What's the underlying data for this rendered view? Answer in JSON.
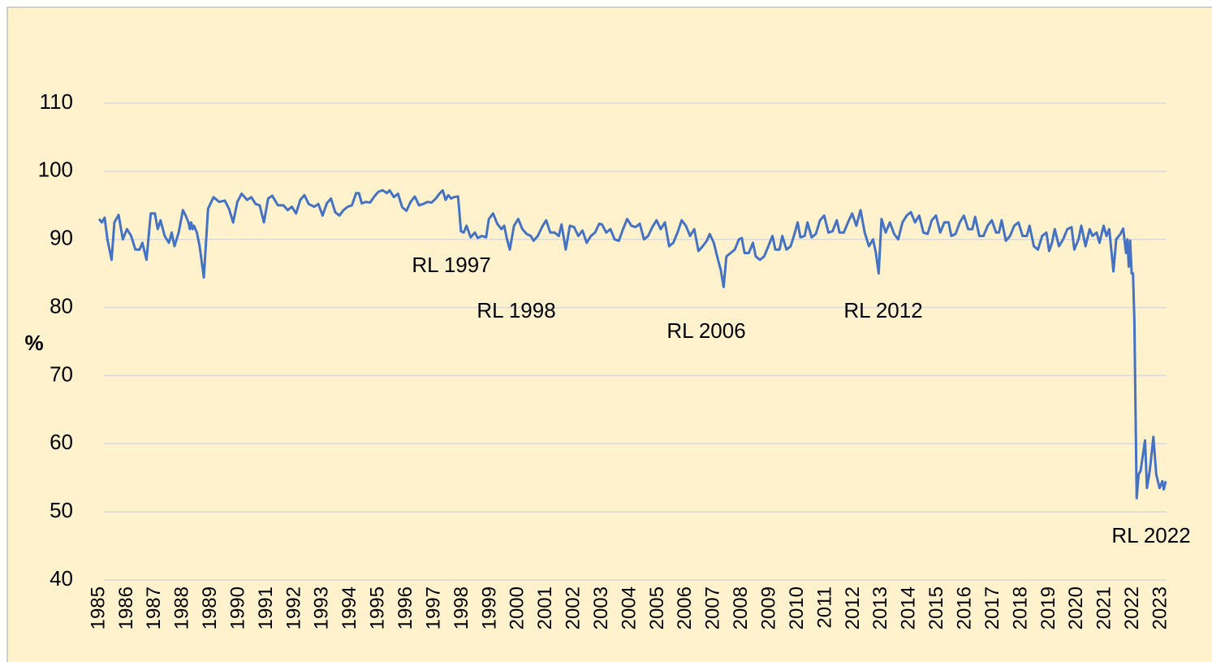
{
  "chart_data": {
    "type": "line",
    "y_label": "%",
    "annotations": [
      "RL 1997",
      "RL 1998",
      "RL 2006",
      "RL 2012",
      "RL 2022"
    ],
    "color": "#4472c4",
    "grid": true,
    "xlim": [
      1985,
      2023.2
    ],
    "xticks": [
      1985,
      1986,
      1987,
      1988,
      1989,
      1990,
      1991,
      1992,
      1993,
      1994,
      1995,
      1996,
      1997,
      1998,
      1999,
      2000,
      2001,
      2002,
      2003,
      2004,
      2005,
      2006,
      2007,
      2008,
      2009,
      2010,
      2011,
      2012,
      2013,
      2014,
      2015,
      2016,
      2017,
      2018,
      2019,
      2020,
      2021,
      2022,
      2023
    ],
    "ylim": [
      40,
      110
    ],
    "yticks": [
      40,
      50,
      60,
      70,
      80,
      90,
      100,
      110
    ],
    "x": [
      1985.0,
      1985.1,
      1985.2,
      1985.3,
      1985.45,
      1985.55,
      1985.7,
      1985.85,
      1986.0,
      1986.15,
      1986.3,
      1986.45,
      1986.55,
      1986.7,
      1986.85,
      1987.0,
      1987.1,
      1987.2,
      1987.35,
      1987.5,
      1987.6,
      1987.7,
      1987.85,
      1988.0,
      1988.1,
      1988.2,
      1988.25,
      1988.3,
      1988.35,
      1988.4,
      1988.5,
      1988.6,
      1988.75,
      1988.9,
      1989.1,
      1989.3,
      1989.5,
      1989.65,
      1989.8,
      1989.95,
      1990.1,
      1990.3,
      1990.45,
      1990.6,
      1990.75,
      1990.9,
      1991.05,
      1991.2,
      1991.4,
      1991.6,
      1991.75,
      1991.9,
      1992.05,
      1992.2,
      1992.35,
      1992.5,
      1992.7,
      1992.85,
      1993.0,
      1993.15,
      1993.3,
      1993.45,
      1993.6,
      1993.75,
      1993.9,
      1994.05,
      1994.2,
      1994.3,
      1994.4,
      1994.55,
      1994.7,
      1994.85,
      1995.0,
      1995.15,
      1995.3,
      1995.4,
      1995.55,
      1995.7,
      1995.85,
      1996.0,
      1996.15,
      1996.3,
      1996.45,
      1996.6,
      1996.75,
      1996.9,
      1997.05,
      1997.2,
      1997.3,
      1997.4,
      1997.5,
      1997.6,
      1997.7,
      1997.85,
      1997.95,
      1998.05,
      1998.15,
      1998.3,
      1998.45,
      1998.55,
      1998.7,
      1998.85,
      1998.95,
      1999.1,
      1999.25,
      1999.4,
      1999.5,
      1999.6,
      1999.7,
      1999.85,
      2000.0,
      2000.15,
      2000.3,
      2000.45,
      2000.55,
      2000.7,
      2000.85,
      2001.0,
      2001.15,
      2001.3,
      2001.45,
      2001.55,
      2001.7,
      2001.85,
      2002.0,
      2002.15,
      2002.3,
      2002.45,
      2002.6,
      2002.75,
      2002.9,
      2003.0,
      2003.15,
      2003.3,
      2003.45,
      2003.6,
      2003.75,
      2003.9,
      2004.05,
      2004.2,
      2004.35,
      2004.5,
      2004.65,
      2004.8,
      2004.95,
      2005.1,
      2005.25,
      2005.4,
      2005.55,
      2005.7,
      2005.85,
      2006.0,
      2006.15,
      2006.3,
      2006.45,
      2006.6,
      2006.75,
      2006.85,
      2007.0,
      2007.15,
      2007.25,
      2007.35,
      2007.45,
      2007.6,
      2007.75,
      2007.9,
      2008.0,
      2008.1,
      2008.25,
      2008.4,
      2008.5,
      2008.65,
      2008.8,
      2008.95,
      2009.1,
      2009.2,
      2009.35,
      2009.45,
      2009.6,
      2009.75,
      2009.9,
      2010.0,
      2010.1,
      2010.25,
      2010.35,
      2010.5,
      2010.65,
      2010.8,
      2010.95,
      2011.1,
      2011.25,
      2011.4,
      2011.5,
      2011.65,
      2011.8,
      2011.95,
      2012.1,
      2012.25,
      2012.4,
      2012.55,
      2012.7,
      2012.8,
      2012.9,
      2013.0,
      2013.15,
      2013.3,
      2013.45,
      2013.6,
      2013.75,
      2013.9,
      2014.05,
      2014.2,
      2014.35,
      2014.5,
      2014.65,
      2014.8,
      2014.95,
      2015.1,
      2015.25,
      2015.4,
      2015.5,
      2015.65,
      2015.8,
      2015.95,
      2016.1,
      2016.25,
      2016.35,
      2016.5,
      2016.65,
      2016.8,
      2016.95,
      2017.1,
      2017.2,
      2017.3,
      2017.45,
      2017.6,
      2017.75,
      2017.9,
      2018.05,
      2018.2,
      2018.3,
      2018.45,
      2018.6,
      2018.75,
      2018.9,
      2019.0,
      2019.1,
      2019.2,
      2019.35,
      2019.5,
      2019.65,
      2019.8,
      2019.9,
      2020.05,
      2020.15,
      2020.3,
      2020.45,
      2020.55,
      2020.7,
      2020.8,
      2020.95,
      2021.05,
      2021.15,
      2021.3,
      2021.4,
      2021.55,
      2021.65,
      2021.75,
      2021.8,
      2021.85,
      2021.9,
      2021.95,
      2022.0,
      2022.05,
      2022.09,
      2022.13,
      2022.2,
      2022.27,
      2022.43,
      2022.5,
      2022.6,
      2022.73,
      2022.83,
      2022.95,
      2023.05,
      2023.1,
      2023.17
    ],
    "values": [
      93,
      92.5,
      93.2,
      90,
      87,
      92.5,
      93.6,
      90,
      91.5,
      90.5,
      88.5,
      88.5,
      89.5,
      87,
      93.8,
      93.8,
      91.5,
      92.8,
      90.5,
      89.5,
      91,
      89,
      91,
      94.3,
      93.5,
      92.5,
      91.5,
      92.5,
      91.5,
      92,
      91,
      89,
      84.4,
      94.5,
      96.2,
      95.5,
      95.7,
      94.5,
      92.5,
      95.5,
      96.7,
      95.8,
      96.2,
      95.2,
      95,
      92.5,
      96,
      96.4,
      95,
      95,
      94.3,
      94.8,
      93.8,
      95.8,
      96.5,
      95.2,
      94.8,
      95.2,
      93.5,
      95.3,
      96,
      94,
      93.5,
      94.3,
      94.8,
      95,
      96.8,
      96.8,
      95.3,
      95.5,
      95.4,
      96.3,
      97,
      97.2,
      96.8,
      97.2,
      96.2,
      96.7,
      94.7,
      94.2,
      95.5,
      96.3,
      95,
      95.2,
      95.5,
      95.4,
      96,
      96.8,
      97.2,
      95.8,
      96.5,
      96,
      96.2,
      96.3,
      91.2,
      91,
      92,
      90.3,
      91,
      90.2,
      90.5,
      90.3,
      93,
      93.8,
      92.3,
      91.5,
      92,
      90,
      88.5,
      92,
      93,
      91.5,
      90.8,
      90.5,
      89.8,
      90.5,
      91.8,
      92.8,
      91,
      91,
      90.5,
      92.2,
      88.5,
      92,
      91.8,
      90.5,
      91.3,
      89.5,
      90.5,
      91,
      92.3,
      92.2,
      91,
      91.5,
      90,
      89.8,
      91.5,
      93,
      92,
      91.8,
      92.3,
      90,
      90.5,
      91.8,
      92.8,
      91.5,
      92.5,
      89,
      89.5,
      91,
      92.8,
      92,
      90.5,
      91.5,
      88.3,
      89,
      89.8,
      90.8,
      89.5,
      87,
      85.5,
      83,
      87.5,
      88,
      88.5,
      90,
      90.2,
      88,
      88,
      89.5,
      87.5,
      87,
      87.5,
      89,
      90.5,
      88.5,
      88.5,
      90.5,
      88.5,
      89,
      91,
      92.5,
      90.3,
      90.5,
      92.5,
      90.3,
      90.8,
      92.8,
      93.5,
      91,
      91.2,
      92.8,
      91,
      91,
      92.5,
      93.8,
      92,
      94.3,
      91,
      89,
      90,
      88,
      85,
      93,
      91,
      92.5,
      90.8,
      90,
      92.5,
      93.5,
      94,
      92.5,
      93.5,
      91,
      90.8,
      92.8,
      93.5,
      91,
      92.5,
      92.5,
      90.5,
      90.8,
      92.5,
      93.5,
      91.5,
      91.5,
      93.3,
      90.5,
      90.5,
      92,
      92.8,
      91,
      91,
      92.8,
      89.8,
      90.5,
      92,
      92.5,
      90.5,
      90.5,
      92,
      89,
      88.5,
      90.5,
      91,
      88.3,
      89.5,
      91.5,
      89,
      90,
      91.5,
      91.8,
      88.5,
      90,
      92,
      89,
      91.5,
      90.5,
      91,
      89.5,
      92,
      90.5,
      91.5,
      85.3,
      90,
      90.8,
      91.6,
      88,
      90,
      86,
      89.8,
      85,
      85,
      78,
      65,
      52,
      55.5,
      56,
      60.5,
      53.5,
      56,
      61,
      55.5,
      53.5,
      54.5,
      53.3,
      54.5
    ]
  }
}
